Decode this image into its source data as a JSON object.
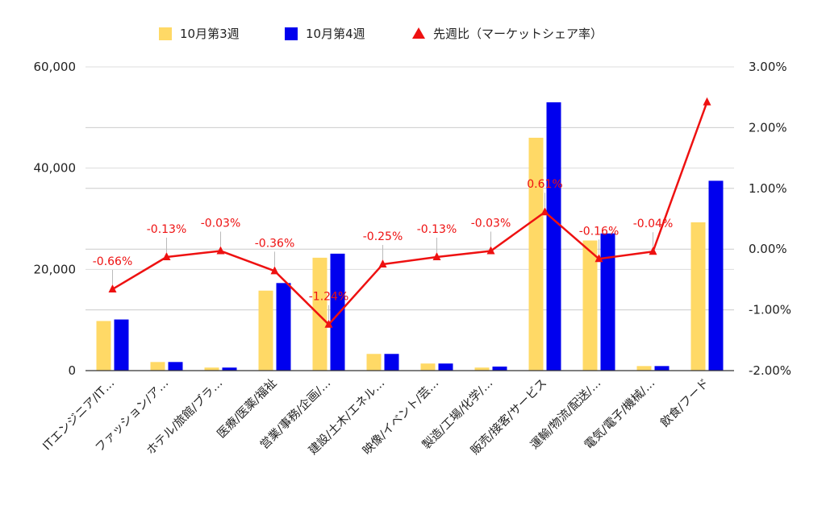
{
  "chart_data": {
    "type": "bar",
    "categories": [
      "ITエンジニア/IT…",
      "ファッション/ア…",
      "ホテル/旅館/ブラ…",
      "医療/医薬/福祉",
      "営業/事務/企画/…",
      "建設/土木/エネル…",
      "映像/イベント/芸…",
      "製造/工場/化学/…",
      "販売/接客/サービス",
      "運輸/物流/配送/…",
      "電気/電子/機械/…",
      "飲食/フード"
    ],
    "series": [
      {
        "name": "10月第3週",
        "type": "bar",
        "axis": "left",
        "color": "#FFD966",
        "values": [
          9800,
          1700,
          600,
          15800,
          22300,
          3300,
          1400,
          600,
          46000,
          25700,
          900,
          29300
        ]
      },
      {
        "name": "10月第4週",
        "type": "bar",
        "axis": "left",
        "color": "#0000EE",
        "values": [
          10100,
          1700,
          600,
          17300,
          23100,
          3300,
          1400,
          800,
          53000,
          27100,
          900,
          37500
        ]
      },
      {
        "name": "先週比（マーケットシェア率）",
        "type": "line",
        "axis": "right",
        "color": "#EE1111",
        "marker": "triangle",
        "values": [
          -0.66,
          -0.13,
          -0.03,
          -0.36,
          -1.24,
          -0.25,
          -0.13,
          -0.03,
          0.61,
          -0.16,
          -0.04,
          2.42
        ],
        "data_labels": [
          "-0.66%",
          "-0.13%",
          "-0.03%",
          "-0.36%",
          "-1.24%",
          "-0.25%",
          "-0.13%",
          "-0.03%",
          "0.61%",
          "-0.16%",
          "-0.04%",
          ""
        ]
      }
    ],
    "y_left": {
      "ylim": [
        0,
        60000
      ],
      "ticks": [
        0,
        20000,
        40000,
        60000
      ],
      "tick_labels": [
        "0",
        "20,000",
        "40,000",
        "60,000"
      ]
    },
    "y_right": {
      "ylim": [
        -2,
        3
      ],
      "ticks": [
        -2,
        -1,
        0,
        1,
        2,
        3
      ],
      "tick_labels": [
        "-2.00%",
        "-1.00%",
        "0.00%",
        "1.00%",
        "2.00%",
        "3.00%"
      ]
    },
    "grid": true,
    "legend_position": "top-center",
    "title": "",
    "xlabel": "",
    "ylabel": ""
  }
}
